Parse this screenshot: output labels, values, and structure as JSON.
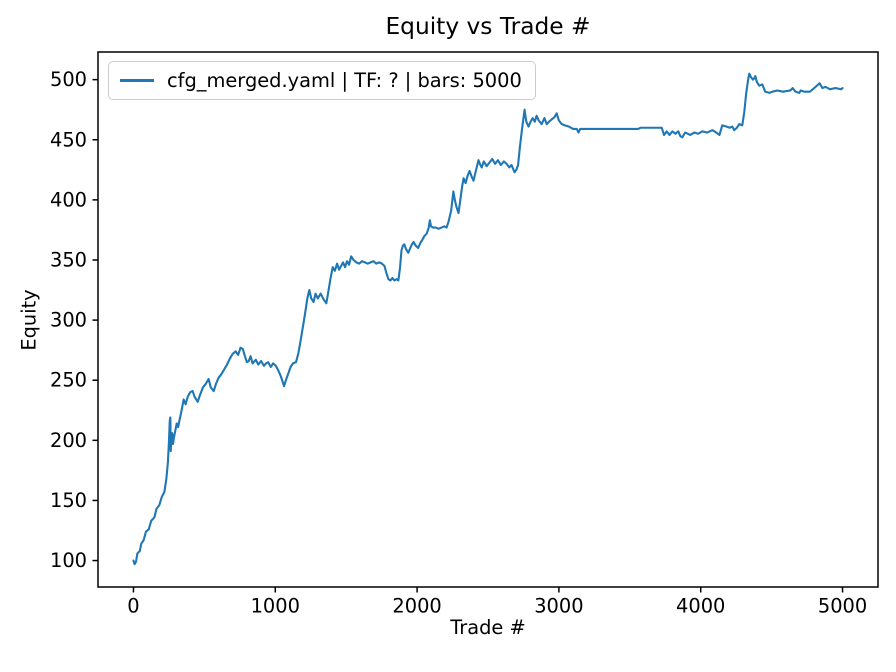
{
  "colors": {
    "line": "#1f77b4",
    "spine": "#000000",
    "tick": "#000000",
    "text": "#000000",
    "legend_border": "#cccccc",
    "background": "#ffffff"
  },
  "chart_data": {
    "type": "line",
    "title": "Equity vs Trade #",
    "xlabel": "Trade #",
    "ylabel": "Equity",
    "legend": [
      "cfg_merged.yaml | TF: ? | bars: 5000"
    ],
    "legend_position": "upper left",
    "grid": false,
    "xlim": [
      -250,
      5250
    ],
    "ylim": [
      78,
      523
    ],
    "x_ticks": [
      0,
      1000,
      2000,
      3000,
      4000,
      5000
    ],
    "y_ticks": [
      100,
      150,
      200,
      250,
      300,
      350,
      400,
      450,
      500
    ],
    "series": [
      {
        "name": "cfg_merged.yaml | TF: ? | bars: 5000",
        "color": "#1f77b4",
        "points": [
          [
            0,
            100
          ],
          [
            8,
            97
          ],
          [
            18,
            99
          ],
          [
            28,
            106
          ],
          [
            45,
            108
          ],
          [
            55,
            114
          ],
          [
            72,
            117
          ],
          [
            88,
            124
          ],
          [
            108,
            126
          ],
          [
            125,
            133
          ],
          [
            148,
            136
          ],
          [
            162,
            143
          ],
          [
            182,
            146
          ],
          [
            200,
            153
          ],
          [
            218,
            157
          ],
          [
            232,
            168
          ],
          [
            243,
            182
          ],
          [
            250,
            198
          ],
          [
            256,
            216
          ],
          [
            260,
            219
          ],
          [
            263,
            191
          ],
          [
            267,
            201
          ],
          [
            273,
            206
          ],
          [
            279,
            197
          ],
          [
            285,
            202
          ],
          [
            295,
            208
          ],
          [
            305,
            214
          ],
          [
            315,
            211
          ],
          [
            325,
            217
          ],
          [
            338,
            224
          ],
          [
            354,
            234
          ],
          [
            368,
            230
          ],
          [
            382,
            236
          ],
          [
            400,
            240
          ],
          [
            417,
            241
          ],
          [
            432,
            236
          ],
          [
            453,
            232
          ],
          [
            470,
            238
          ],
          [
            490,
            244
          ],
          [
            510,
            247
          ],
          [
            530,
            251
          ],
          [
            545,
            244
          ],
          [
            566,
            241
          ],
          [
            582,
            247
          ],
          [
            600,
            252
          ],
          [
            620,
            255
          ],
          [
            640,
            259
          ],
          [
            660,
            263
          ],
          [
            680,
            268
          ],
          [
            700,
            272
          ],
          [
            721,
            274
          ],
          [
            738,
            271
          ],
          [
            755,
            277
          ],
          [
            771,
            276
          ],
          [
            786,
            270
          ],
          [
            800,
            265
          ],
          [
            813,
            266
          ],
          [
            826,
            270
          ],
          [
            840,
            264
          ],
          [
            863,
            267
          ],
          [
            880,
            263
          ],
          [
            900,
            266
          ],
          [
            920,
            262
          ],
          [
            935,
            264
          ],
          [
            950,
            265
          ],
          [
            968,
            261
          ],
          [
            985,
            264
          ],
          [
            1004,
            262
          ],
          [
            1022,
            258
          ],
          [
            1040,
            253
          ],
          [
            1054,
            248
          ],
          [
            1062,
            245
          ],
          [
            1075,
            250
          ],
          [
            1090,
            255
          ],
          [
            1108,
            261
          ],
          [
            1125,
            264
          ],
          [
            1146,
            265
          ],
          [
            1162,
            272
          ],
          [
            1176,
            281
          ],
          [
            1190,
            291
          ],
          [
            1204,
            301
          ],
          [
            1216,
            310
          ],
          [
            1226,
            318
          ],
          [
            1240,
            325
          ],
          [
            1254,
            318
          ],
          [
            1270,
            315
          ],
          [
            1284,
            322
          ],
          [
            1300,
            318
          ],
          [
            1320,
            322
          ],
          [
            1342,
            317
          ],
          [
            1360,
            314
          ],
          [
            1376,
            325
          ],
          [
            1390,
            335
          ],
          [
            1405,
            344
          ],
          [
            1420,
            341
          ],
          [
            1436,
            347
          ],
          [
            1450,
            342
          ],
          [
            1464,
            345
          ],
          [
            1478,
            348
          ],
          [
            1492,
            344
          ],
          [
            1506,
            349
          ],
          [
            1520,
            346
          ],
          [
            1535,
            353
          ],
          [
            1552,
            350
          ],
          [
            1572,
            348
          ],
          [
            1592,
            347
          ],
          [
            1612,
            349
          ],
          [
            1632,
            348
          ],
          [
            1652,
            347
          ],
          [
            1672,
            348
          ],
          [
            1692,
            349
          ],
          [
            1712,
            347
          ],
          [
            1732,
            348
          ],
          [
            1752,
            347
          ],
          [
            1770,
            345
          ],
          [
            1784,
            339
          ],
          [
            1798,
            334
          ],
          [
            1812,
            333
          ],
          [
            1826,
            335
          ],
          [
            1840,
            333
          ],
          [
            1856,
            334
          ],
          [
            1868,
            333
          ],
          [
            1880,
            344
          ],
          [
            1890,
            358
          ],
          [
            1900,
            362
          ],
          [
            1910,
            363
          ],
          [
            1922,
            359
          ],
          [
            1938,
            356
          ],
          [
            1952,
            360
          ],
          [
            1964,
            363
          ],
          [
            1975,
            365
          ],
          [
            1990,
            362
          ],
          [
            2008,
            360
          ],
          [
            2022,
            364
          ],
          [
            2038,
            367
          ],
          [
            2052,
            370
          ],
          [
            2068,
            372
          ],
          [
            2082,
            377
          ],
          [
            2090,
            383
          ],
          [
            2098,
            378
          ],
          [
            2112,
            377
          ],
          [
            2132,
            377
          ],
          [
            2152,
            376
          ],
          [
            2172,
            377
          ],
          [
            2192,
            378
          ],
          [
            2208,
            377
          ],
          [
            2222,
            382
          ],
          [
            2240,
            391
          ],
          [
            2256,
            407
          ],
          [
            2266,
            400
          ],
          [
            2278,
            394
          ],
          [
            2292,
            389
          ],
          [
            2306,
            401
          ],
          [
            2316,
            410
          ],
          [
            2328,
            418
          ],
          [
            2342,
            414
          ],
          [
            2356,
            420
          ],
          [
            2370,
            424
          ],
          [
            2386,
            419
          ],
          [
            2398,
            416
          ],
          [
            2416,
            425
          ],
          [
            2433,
            433
          ],
          [
            2446,
            429
          ],
          [
            2456,
            427
          ],
          [
            2470,
            432
          ],
          [
            2490,
            428
          ],
          [
            2510,
            431
          ],
          [
            2530,
            434
          ],
          [
            2550,
            430
          ],
          [
            2570,
            433
          ],
          [
            2590,
            429
          ],
          [
            2612,
            432
          ],
          [
            2631,
            430
          ],
          [
            2650,
            427
          ],
          [
            2666,
            429
          ],
          [
            2687,
            423
          ],
          [
            2700,
            425
          ],
          [
            2712,
            429
          ],
          [
            2724,
            443
          ],
          [
            2737,
            456
          ],
          [
            2750,
            468
          ],
          [
            2758,
            475
          ],
          [
            2770,
            465
          ],
          [
            2786,
            461
          ],
          [
            2800,
            465
          ],
          [
            2815,
            468
          ],
          [
            2830,
            465
          ],
          [
            2843,
            470
          ],
          [
            2858,
            466
          ],
          [
            2878,
            463
          ],
          [
            2898,
            468
          ],
          [
            2914,
            463
          ],
          [
            2930,
            465
          ],
          [
            2950,
            467
          ],
          [
            2970,
            469
          ],
          [
            2984,
            472
          ],
          [
            3000,
            466
          ],
          [
            3020,
            463
          ],
          [
            3042,
            462
          ],
          [
            3070,
            461
          ],
          [
            3100,
            459
          ],
          [
            3126,
            459
          ],
          [
            3138,
            456
          ],
          [
            3150,
            459
          ],
          [
            3560,
            459
          ],
          [
            3575,
            460
          ],
          [
            3725,
            460
          ],
          [
            3741,
            454
          ],
          [
            3760,
            457
          ],
          [
            3780,
            454
          ],
          [
            3800,
            457
          ],
          [
            3822,
            455
          ],
          [
            3842,
            457
          ],
          [
            3856,
            453
          ],
          [
            3870,
            452
          ],
          [
            3890,
            456
          ],
          [
            3910,
            455
          ],
          [
            3926,
            454
          ],
          [
            3954,
            456
          ],
          [
            3982,
            455
          ],
          [
            4012,
            457
          ],
          [
            4045,
            456
          ],
          [
            4082,
            458
          ],
          [
            4110,
            456
          ],
          [
            4132,
            454
          ],
          [
            4152,
            462
          ],
          [
            4180,
            461
          ],
          [
            4205,
            460
          ],
          [
            4222,
            461
          ],
          [
            4236,
            458
          ],
          [
            4255,
            460
          ],
          [
            4272,
            463
          ],
          [
            4293,
            462
          ],
          [
            4307,
            473
          ],
          [
            4320,
            488
          ],
          [
            4333,
            499
          ],
          [
            4342,
            505
          ],
          [
            4355,
            502
          ],
          [
            4368,
            500
          ],
          [
            4377,
            501
          ],
          [
            4385,
            503
          ],
          [
            4396,
            498
          ],
          [
            4413,
            495
          ],
          [
            4434,
            496
          ],
          [
            4455,
            490
          ],
          [
            4484,
            489
          ],
          [
            4505,
            490
          ],
          [
            4540,
            491
          ],
          [
            4580,
            490
          ],
          [
            4632,
            491
          ],
          [
            4648,
            493
          ],
          [
            4668,
            490
          ],
          [
            4695,
            489
          ],
          [
            4705,
            491
          ],
          [
            4730,
            490
          ],
          [
            4770,
            490
          ],
          [
            4810,
            494
          ],
          [
            4838,
            497
          ],
          [
            4858,
            493
          ],
          [
            4880,
            494
          ],
          [
            4912,
            492
          ],
          [
            4950,
            493
          ],
          [
            4990,
            492
          ],
          [
            5000,
            493
          ]
        ]
      }
    ]
  }
}
